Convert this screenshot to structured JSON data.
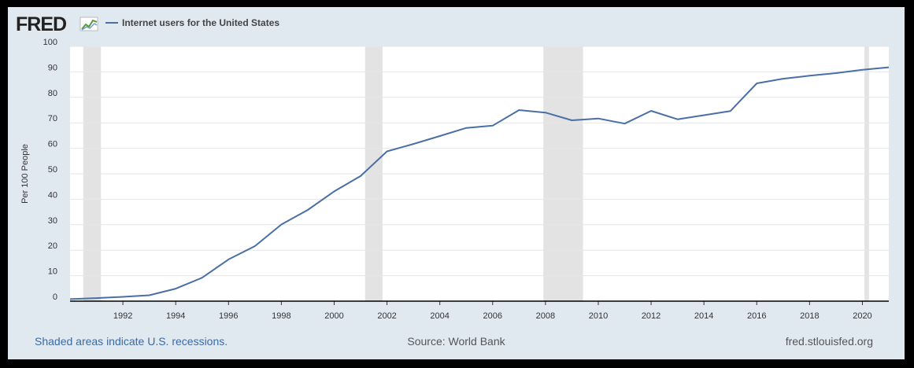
{
  "header": {
    "logo_text": "FRED",
    "series_title": "Internet users for the United States"
  },
  "footer": {
    "note": "Shaded areas indicate U.S. recessions.",
    "source": "Source: World Bank",
    "site": "fred.stlouisfed.org"
  },
  "colors": {
    "line": "#4a6fa5",
    "recession": "#e3e3e3",
    "grid": "#e6e6e6",
    "background": "#e1e9f0",
    "plot": "#ffffff"
  },
  "chart_data": {
    "type": "line",
    "title": "",
    "xlabel": "",
    "ylabel": "Per 100 People",
    "xlim": [
      1990,
      2021
    ],
    "ylim": [
      0,
      100
    ],
    "yticks": [
      0,
      10,
      20,
      30,
      40,
      50,
      60,
      70,
      80,
      90,
      100
    ],
    "xticks": [
      1992,
      1994,
      1996,
      1998,
      2000,
      2002,
      2004,
      2006,
      2008,
      2010,
      2012,
      2014,
      2016,
      2018,
      2020
    ],
    "grid": true,
    "recessions": [
      [
        1990.5,
        1991.17
      ],
      [
        2001.17,
        2001.83
      ],
      [
        2007.92,
        2009.42
      ],
      [
        2020.08,
        2020.25
      ]
    ],
    "series": [
      {
        "name": "Internet users for the United States",
        "x": [
          1990,
          1991,
          1992,
          1993,
          1994,
          1995,
          1996,
          1997,
          1998,
          1999,
          2000,
          2001,
          2002,
          2003,
          2004,
          2005,
          2006,
          2007,
          2008,
          2009,
          2010,
          2011,
          2012,
          2013,
          2014,
          2015,
          2016,
          2017,
          2018,
          2019,
          2020,
          2021
        ],
        "y": [
          0.8,
          1.2,
          1.7,
          2.3,
          4.9,
          9.2,
          16.4,
          21.6,
          30.1,
          35.8,
          43.1,
          49.1,
          58.8,
          61.7,
          64.8,
          68.0,
          68.9,
          75.0,
          74.0,
          71.0,
          71.7,
          69.7,
          74.7,
          71.4,
          73.0,
          74.6,
          85.5,
          87.3,
          88.5,
          89.5,
          90.8,
          91.8
        ]
      }
    ]
  }
}
